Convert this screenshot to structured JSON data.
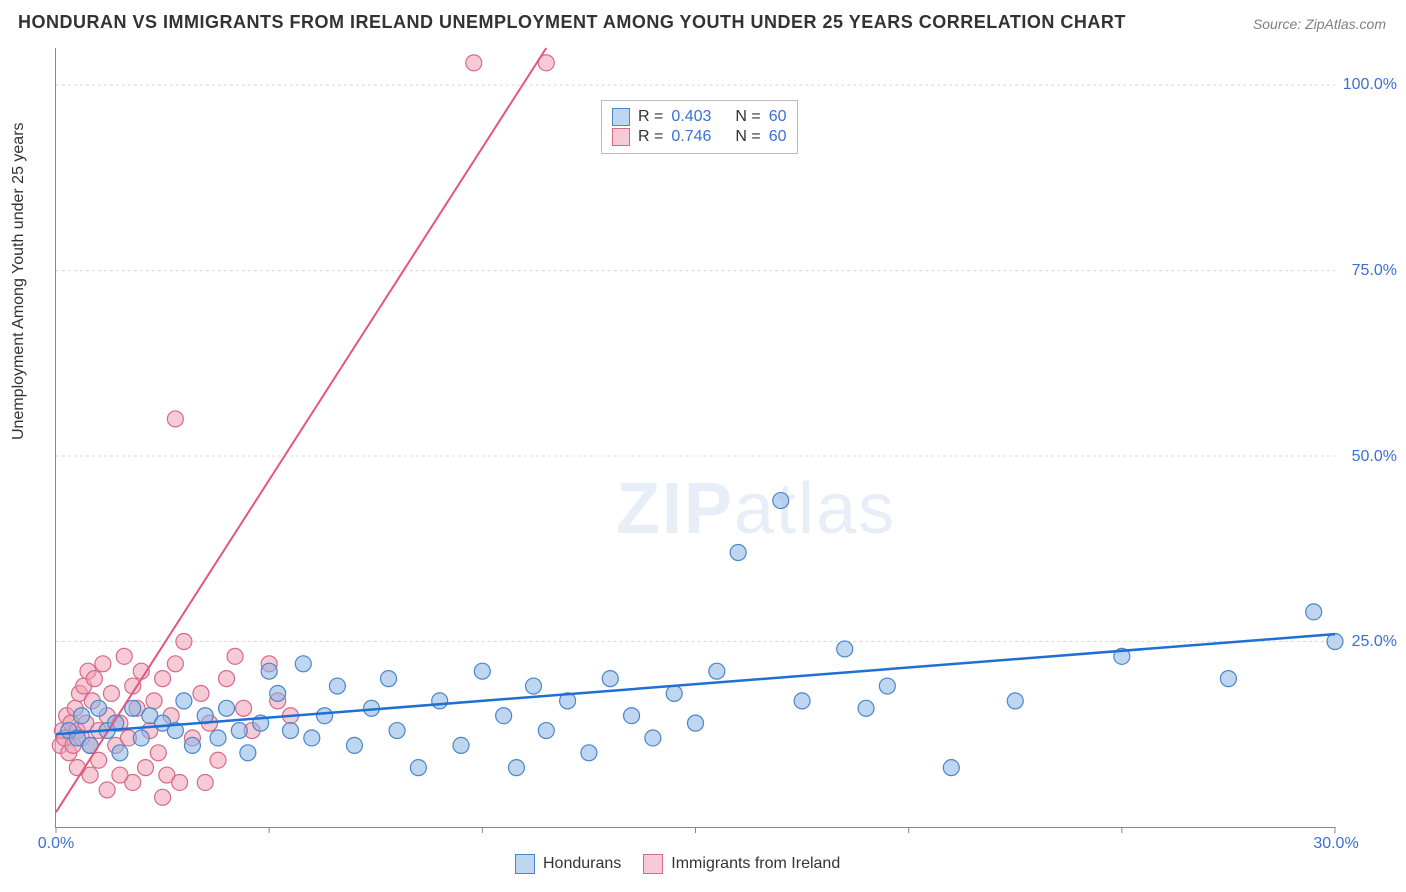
{
  "title": "HONDURAN VS IMMIGRANTS FROM IRELAND UNEMPLOYMENT AMONG YOUTH UNDER 25 YEARS CORRELATION CHART",
  "source": "Source: ZipAtlas.com",
  "ylabel": "Unemployment Among Youth under 25 years",
  "watermark_bold": "ZIP",
  "watermark_thin": "atlas",
  "chart": {
    "type": "scatter",
    "xlim": [
      0,
      30
    ],
    "ylim": [
      0,
      105
    ],
    "yticks": [
      25,
      50,
      75,
      100
    ],
    "ytick_labels": [
      "25.0%",
      "50.0%",
      "75.0%",
      "100.0%"
    ],
    "xticks": [
      0,
      5,
      10,
      15,
      20,
      25,
      30
    ],
    "xtick_labels_shown": {
      "0": "0.0%",
      "30": "30.0%"
    },
    "background_color": "#ffffff",
    "grid_color": "#d8d8d8",
    "axis_color": "#888888",
    "marker_radius": 8,
    "series": {
      "hondurans": {
        "label": "Hondurans",
        "fill": "rgba(138,180,230,0.55)",
        "stroke": "#4a86c8",
        "trend_color": "#1f6fd4",
        "trend": {
          "x1": 0,
          "y1": 12.5,
          "x2": 30,
          "y2": 26
        },
        "R": 0.403,
        "N": 60,
        "points": [
          [
            0.3,
            13
          ],
          [
            0.5,
            12
          ],
          [
            0.6,
            15
          ],
          [
            0.8,
            11
          ],
          [
            1.0,
            16
          ],
          [
            1.2,
            13
          ],
          [
            1.4,
            14
          ],
          [
            1.5,
            10
          ],
          [
            1.8,
            16
          ],
          [
            2.0,
            12
          ],
          [
            2.2,
            15
          ],
          [
            2.5,
            14
          ],
          [
            2.8,
            13
          ],
          [
            3.0,
            17
          ],
          [
            3.2,
            11
          ],
          [
            3.5,
            15
          ],
          [
            3.8,
            12
          ],
          [
            4.0,
            16
          ],
          [
            4.3,
            13
          ],
          [
            4.5,
            10
          ],
          [
            4.8,
            14
          ],
          [
            5.0,
            21
          ],
          [
            5.2,
            18
          ],
          [
            5.5,
            13
          ],
          [
            5.8,
            22
          ],
          [
            6.0,
            12
          ],
          [
            6.3,
            15
          ],
          [
            6.6,
            19
          ],
          [
            7.0,
            11
          ],
          [
            7.4,
            16
          ],
          [
            7.8,
            20
          ],
          [
            8.0,
            13
          ],
          [
            8.5,
            8
          ],
          [
            9.0,
            17
          ],
          [
            9.5,
            11
          ],
          [
            10.0,
            21
          ],
          [
            10.5,
            15
          ],
          [
            10.8,
            8
          ],
          [
            11.2,
            19
          ],
          [
            11.5,
            13
          ],
          [
            12.0,
            17
          ],
          [
            12.5,
            10
          ],
          [
            13.0,
            20
          ],
          [
            13.5,
            15
          ],
          [
            14.0,
            12
          ],
          [
            14.5,
            18
          ],
          [
            15.0,
            14
          ],
          [
            15.5,
            21
          ],
          [
            16.0,
            37
          ],
          [
            17.0,
            44
          ],
          [
            17.5,
            17
          ],
          [
            18.5,
            24
          ],
          [
            19.0,
            16
          ],
          [
            19.5,
            19
          ],
          [
            21.0,
            8
          ],
          [
            22.5,
            17
          ],
          [
            25.0,
            23
          ],
          [
            27.5,
            20
          ],
          [
            29.5,
            29
          ],
          [
            30.0,
            25
          ]
        ]
      },
      "ireland": {
        "label": "Immigrants from Ireland",
        "fill": "rgba(240,160,180,0.55)",
        "stroke": "#d46a8a",
        "trend_color": "#e4567b",
        "trend": {
          "x1": 0,
          "y1": 2,
          "x2": 11.5,
          "y2": 105
        },
        "R": 0.746,
        "N": 60,
        "points": [
          [
            0.1,
            11
          ],
          [
            0.15,
            13
          ],
          [
            0.2,
            12
          ],
          [
            0.25,
            15
          ],
          [
            0.3,
            10
          ],
          [
            0.35,
            14
          ],
          [
            0.4,
            11
          ],
          [
            0.45,
            16
          ],
          [
            0.5,
            13
          ],
          [
            0.55,
            18
          ],
          [
            0.6,
            12
          ],
          [
            0.65,
            19
          ],
          [
            0.7,
            14
          ],
          [
            0.75,
            21
          ],
          [
            0.8,
            11
          ],
          [
            0.85,
            17
          ],
          [
            0.9,
            20
          ],
          [
            1.0,
            13
          ],
          [
            1.1,
            22
          ],
          [
            1.2,
            15
          ],
          [
            1.3,
            18
          ],
          [
            1.4,
            11
          ],
          [
            1.5,
            14
          ],
          [
            1.6,
            23
          ],
          [
            1.7,
            12
          ],
          [
            1.8,
            19
          ],
          [
            1.9,
            16
          ],
          [
            2.0,
            21
          ],
          [
            2.1,
            8
          ],
          [
            2.2,
            13
          ],
          [
            2.3,
            17
          ],
          [
            2.4,
            10
          ],
          [
            2.5,
            20
          ],
          [
            2.6,
            7
          ],
          [
            2.7,
            15
          ],
          [
            2.8,
            22
          ],
          [
            2.9,
            6
          ],
          [
            3.0,
            25
          ],
          [
            3.2,
            12
          ],
          [
            3.4,
            18
          ],
          [
            3.6,
            14
          ],
          [
            3.8,
            9
          ],
          [
            4.0,
            20
          ],
          [
            4.2,
            23
          ],
          [
            4.4,
            16
          ],
          [
            4.6,
            13
          ],
          [
            5.0,
            22
          ],
          [
            5.2,
            17
          ],
          [
            5.5,
            15
          ],
          [
            2.8,
            55
          ],
          [
            9.8,
            103
          ],
          [
            11.5,
            103
          ],
          [
            1.2,
            5
          ],
          [
            1.8,
            6
          ],
          [
            2.5,
            4
          ],
          [
            3.5,
            6
          ],
          [
            0.5,
            8
          ],
          [
            0.8,
            7
          ],
          [
            1.0,
            9
          ],
          [
            1.5,
            7
          ]
        ]
      }
    }
  },
  "legend_top": {
    "r_label": "R =",
    "n_label": "N ="
  },
  "legend_bottom": {
    "series1": "Hondurans",
    "series2": "Immigrants from Ireland"
  }
}
